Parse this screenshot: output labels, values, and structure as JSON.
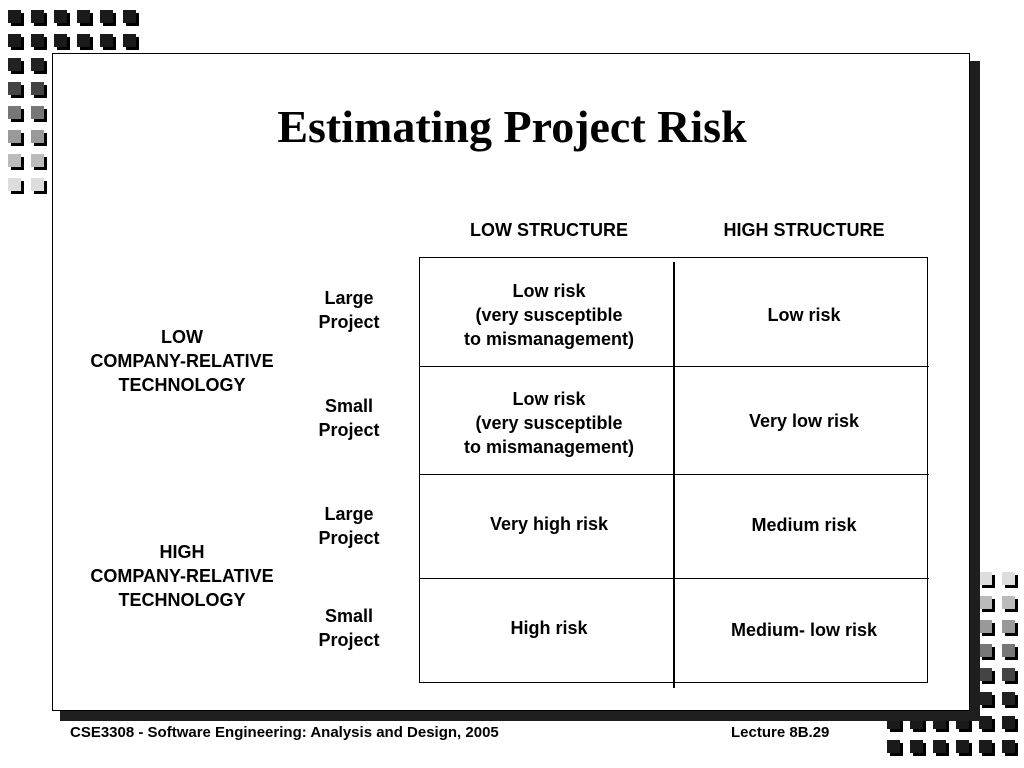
{
  "title": "Estimating Project Risk",
  "columns": [
    "LOW STRUCTURE",
    "HIGH STRUCTURE"
  ],
  "groups": [
    {
      "label_lines": [
        "LOW",
        "COMPANY-RELATIVE",
        "TECHNOLOGY"
      ]
    },
    {
      "label_lines": [
        "HIGH",
        "COMPANY-RELATIVE",
        "TECHNOLOGY"
      ]
    }
  ],
  "rows": [
    {
      "label_lines": [
        "Large",
        "Project"
      ],
      "low_structure": [
        "Low risk",
        "(very susceptible",
        "to mismanagement)"
      ],
      "high_structure": [
        "Low risk"
      ]
    },
    {
      "label_lines": [
        "Small",
        "Project"
      ],
      "low_structure": [
        "Low risk",
        "(very susceptible",
        "to mismanagement)"
      ],
      "high_structure": [
        "Very low risk"
      ]
    },
    {
      "label_lines": [
        "Large",
        "Project"
      ],
      "low_structure": [
        "Very high risk"
      ],
      "high_structure": [
        "Medium risk"
      ]
    },
    {
      "label_lines": [
        "Small",
        "Project"
      ],
      "low_structure": [
        "High risk"
      ],
      "high_structure": [
        "Medium- low risk"
      ]
    }
  ],
  "footer": {
    "course": "CSE3308 - Software Engineering: Analysis and Design, 2005",
    "lecture": "Lecture 8B.29"
  }
}
